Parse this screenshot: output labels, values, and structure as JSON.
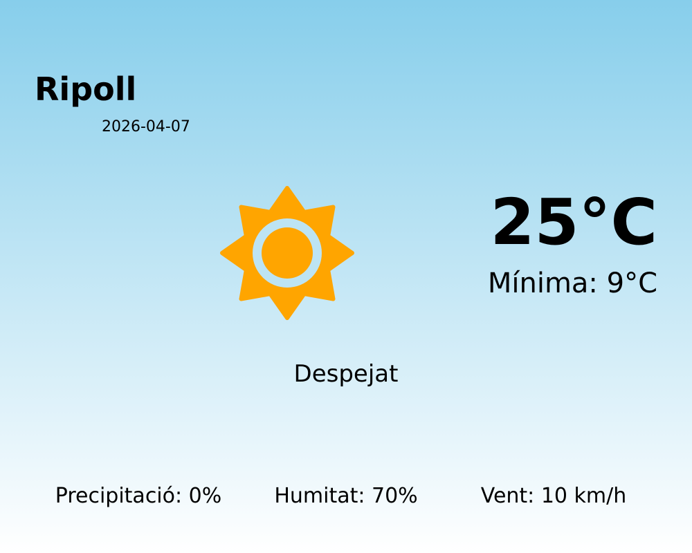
{
  "location": {
    "city": "Ripoll",
    "date": "2026-04-07"
  },
  "current": {
    "temperature": "25°C",
    "minimum": "Mínima: 9°C",
    "condition": "Despejat",
    "icon": "sun-icon",
    "icon_color": "#FFA500"
  },
  "stats": {
    "precipitation": "Precipitació: 0%",
    "humidity": "Humitat: 70%",
    "wind": "Vent: 10 km/h"
  },
  "colors": {
    "sky_top": "#87CEEB",
    "sky_bottom": "#FFFFFF"
  }
}
